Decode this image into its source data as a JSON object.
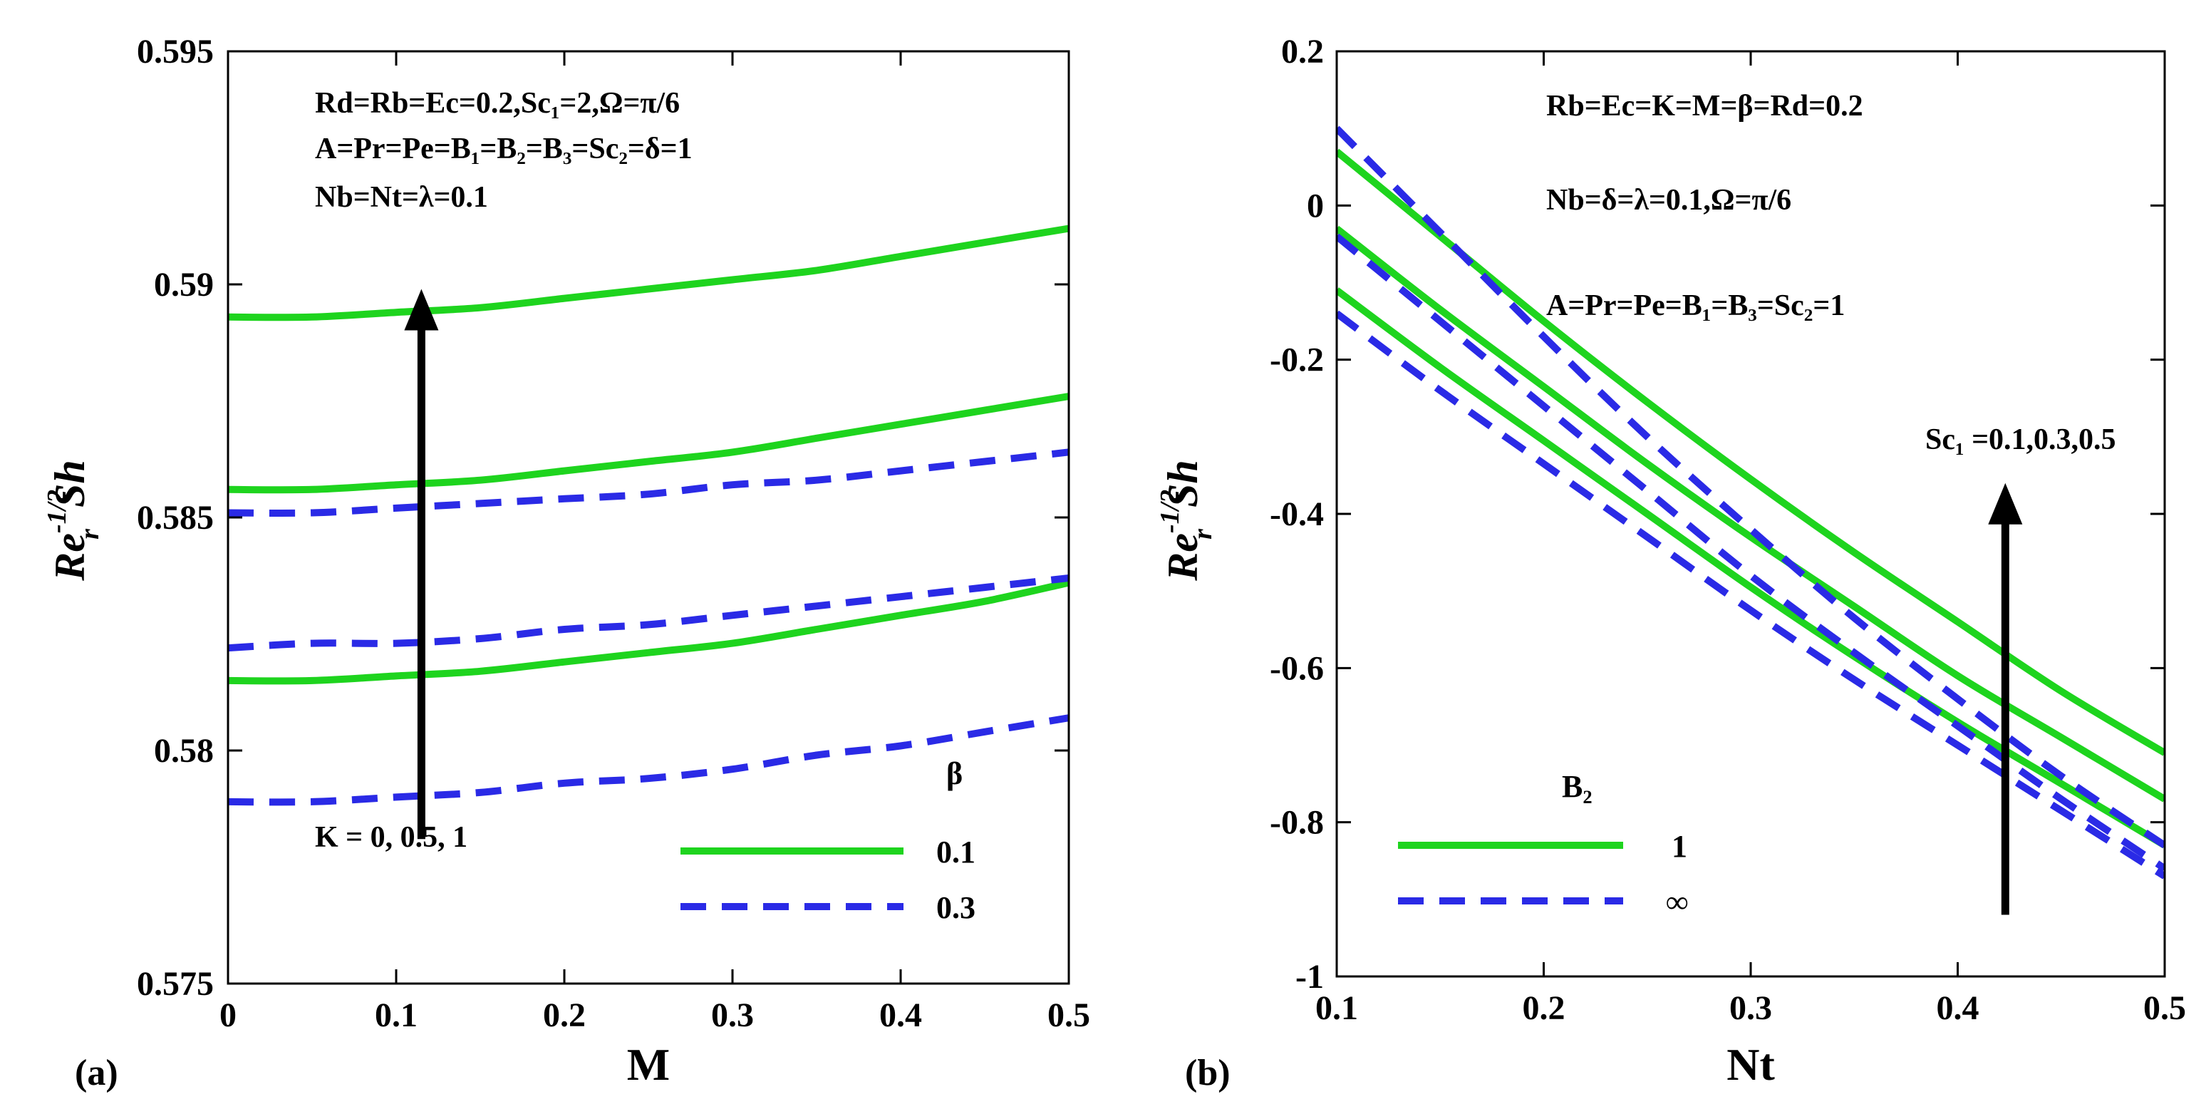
{
  "colors": {
    "solid": "#1ed41e",
    "dashed": "#2a2ae6",
    "arrow": "#000000"
  },
  "chart_data": [
    {
      "panel_label": "(a)",
      "type": "line",
      "xlabel": "M",
      "ylabel": {
        "base": "Re",
        "sup": "-1/2",
        "sub": "r",
        "tail": "Sh"
      },
      "xlim": [
        0,
        0.5
      ],
      "ylim": [
        0.575,
        0.595
      ],
      "xticks": [
        0,
        0.1,
        0.2,
        0.3,
        0.4,
        0.5
      ],
      "xtick_labels": [
        "0",
        "0.1",
        "0.2",
        "0.3",
        "0.4",
        "0.5"
      ],
      "yticks": [
        0.575,
        0.58,
        0.585,
        0.59,
        0.595
      ],
      "ytick_labels": [
        "0.575",
        "0.58",
        "0.585",
        "0.59",
        "0.595"
      ],
      "x": [
        0,
        0.05,
        0.1,
        0.15,
        0.2,
        0.25,
        0.3,
        0.35,
        0.4,
        0.45,
        0.5
      ],
      "series": [
        {
          "name": "β=0.1, K=0",
          "style": "solid",
          "values": [
            0.5815,
            0.5815,
            0.5816,
            0.5817,
            0.5819,
            0.5821,
            0.5823,
            0.5826,
            0.5829,
            0.5832,
            0.5836
          ]
        },
        {
          "name": "β=0.1, K=0.5",
          "style": "solid",
          "values": [
            0.5856,
            0.5856,
            0.5857,
            0.5858,
            0.586,
            0.5862,
            0.5864,
            0.5867,
            0.587,
            0.5873,
            0.5876
          ]
        },
        {
          "name": "β=0.1, K=1",
          "style": "solid",
          "values": [
            0.5893,
            0.5893,
            0.5894,
            0.5895,
            0.5897,
            0.5899,
            0.5901,
            0.5903,
            0.5906,
            0.5909,
            0.5912
          ]
        },
        {
          "name": "β=0.3, K=0",
          "style": "dashed",
          "values": [
            0.5789,
            0.5789,
            0.579,
            0.5791,
            0.5793,
            0.5794,
            0.5796,
            0.5799,
            0.5801,
            0.5804,
            0.5807
          ]
        },
        {
          "name": "β=0.3, K=0.5",
          "style": "dashed",
          "values": [
            0.5822,
            0.5823,
            0.5823,
            0.5824,
            0.5826,
            0.5827,
            0.5829,
            0.5831,
            0.5833,
            0.5835,
            0.5837
          ]
        },
        {
          "name": "β=0.3, K=1",
          "style": "dashed",
          "values": [
            0.5851,
            0.5851,
            0.5852,
            0.5853,
            0.5854,
            0.5855,
            0.5857,
            0.5858,
            0.586,
            0.5862,
            0.5864
          ]
        }
      ],
      "annotations": [
        "Rd=Rb=Ec=0.2,Sc₁=2,Ω=π/6",
        "A=Pr=Pe=B₁=B₂=B₃=Sc₂=δ=1",
        "Nb=Nt=λ=0.1"
      ],
      "arrow": {
        "label": "K = 0, 0.5, 1",
        "x": 0.115,
        "from": 0.5781,
        "to": 0.5899
      },
      "legend": {
        "title": "β",
        "entries": [
          {
            "label": "0.1",
            "style": "solid"
          },
          {
            "label": "0.3",
            "style": "dashed"
          }
        ],
        "position": "bottom-right"
      }
    },
    {
      "panel_label": "(b)",
      "type": "line",
      "xlabel": "Nt",
      "ylabel": {
        "base": "Re",
        "sup": "-1/2",
        "sub": "r",
        "tail": "Sh"
      },
      "xlim": [
        0.1,
        0.5
      ],
      "ylim": [
        -1,
        0.2
      ],
      "xticks": [
        0.1,
        0.2,
        0.3,
        0.4,
        0.5
      ],
      "xtick_labels": [
        "0.1",
        "0.2",
        "0.3",
        "0.4",
        "0.5"
      ],
      "yticks": [
        -1,
        -0.8,
        -0.6,
        -0.4,
        -0.2,
        0,
        0.2
      ],
      "ytick_labels": [
        "-1",
        "-0.8",
        "-0.6",
        "-0.4",
        "-0.2",
        "0",
        "0.2"
      ],
      "x": [
        0.1,
        0.15,
        0.2,
        0.25,
        0.3,
        0.35,
        0.4,
        0.45,
        0.5
      ],
      "series": [
        {
          "name": "B₂=1, Sc₁=0.5",
          "style": "solid",
          "values": [
            0.07,
            -0.04,
            -0.15,
            -0.255,
            -0.355,
            -0.45,
            -0.54,
            -0.63,
            -0.71
          ]
        },
        {
          "name": "B₂=1, Sc₁=0.3",
          "style": "solid",
          "values": [
            -0.03,
            -0.135,
            -0.235,
            -0.335,
            -0.43,
            -0.52,
            -0.61,
            -0.69,
            -0.77
          ]
        },
        {
          "name": "B₂=1, Sc₁=0.1",
          "style": "solid",
          "values": [
            -0.11,
            -0.21,
            -0.305,
            -0.4,
            -0.495,
            -0.585,
            -0.67,
            -0.75,
            -0.83
          ]
        },
        {
          "name": "B₂=∞, Sc₁=0.5",
          "style": "dashed",
          "values": [
            0.1,
            -0.035,
            -0.17,
            -0.3,
            -0.42,
            -0.535,
            -0.64,
            -0.74,
            -0.83
          ]
        },
        {
          "name": "B₂=∞, Sc₁=0.3",
          "style": "dashed",
          "values": [
            -0.04,
            -0.15,
            -0.26,
            -0.37,
            -0.48,
            -0.58,
            -0.675,
            -0.77,
            -0.86
          ]
        },
        {
          "name": "B₂=∞, Sc₁=0.1",
          "style": "dashed",
          "values": [
            -0.14,
            -0.24,
            -0.335,
            -0.43,
            -0.525,
            -0.615,
            -0.7,
            -0.785,
            -0.87
          ]
        }
      ],
      "annotations": [
        "Rb=Ec=K=M=β=Rd=0.2",
        "Nb=δ=λ=0.1,Ω=π/6",
        "A=Pr=Pe=B₁=B₃=Sc₂=1"
      ],
      "arrow": {
        "label": "Sc₁ =0.1,0.3,0.5",
        "x": 0.423,
        "from": -0.92,
        "to": -0.36
      },
      "legend": {
        "title": "B₂",
        "entries": [
          {
            "label": "1",
            "style": "solid"
          },
          {
            "label": "∞",
            "style": "dashed"
          }
        ],
        "position": "bottom-left"
      }
    }
  ]
}
